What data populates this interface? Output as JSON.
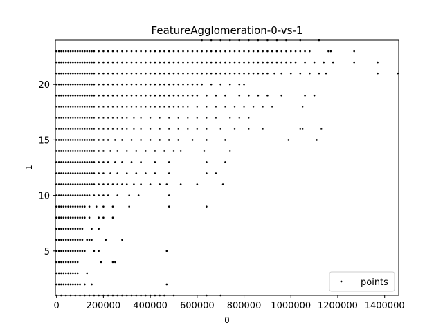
{
  "chart_data": {
    "type": "scatter",
    "title": "FeatureAgglomeration-0-vs-1",
    "xlabel": "0",
    "ylabel": "1",
    "xlim": [
      -5000,
      1460000
    ],
    "ylim": [
      1.0,
      24.0
    ],
    "xticks": [
      0,
      200000,
      400000,
      600000,
      800000,
      1000000,
      1200000,
      1400000
    ],
    "xtick_labels": [
      "0",
      "200000",
      "400000",
      "600000",
      "800000",
      "1000000",
      "1200000",
      "1400000"
    ],
    "yticks": [
      5,
      10,
      15,
      20
    ],
    "ytick_labels": [
      "5",
      "10",
      "15",
      "20"
    ],
    "grid": false,
    "legend": {
      "position": "lower-right",
      "entries": [
        "points"
      ]
    },
    "point_color": "#000000",
    "series": [
      {
        "name": "points",
        "rows": [
          {
            "y": 1,
            "x": [
              0,
              20000,
              40000,
              60000,
              80000,
              100000,
              120000,
              140000,
              160000,
              180000,
              200000,
              220000,
              240000,
              260000,
              280000,
              300000,
              320000,
              340000,
              360000,
              380000,
              400000,
              420000,
              440000,
              460000,
              500000,
              640000,
              700000
            ]
          },
          {
            "y": 2,
            "x": [
              0,
              10000,
              20000,
              30000,
              40000,
              50000,
              60000,
              70000,
              80000,
              90000,
              100000,
              120000,
              150000,
              470000
            ]
          },
          {
            "y": 3,
            "x": [
              0,
              10000,
              20000,
              30000,
              40000,
              50000,
              60000,
              70000,
              80000,
              90000,
              130000
            ]
          },
          {
            "y": 4,
            "x": [
              0,
              10000,
              20000,
              30000,
              40000,
              50000,
              60000,
              70000,
              80000,
              90000,
              190000,
              240000,
              250000
            ]
          },
          {
            "y": 5,
            "x": [
              0,
              10000,
              20000,
              30000,
              40000,
              50000,
              60000,
              70000,
              80000,
              90000,
              100000,
              110000,
              120000,
              160000,
              180000,
              470000
            ]
          },
          {
            "y": 6,
            "x": [
              0,
              10000,
              20000,
              30000,
              40000,
              50000,
              60000,
              70000,
              80000,
              90000,
              100000,
              110000,
              130000,
              140000,
              150000,
              210000,
              280000
            ]
          },
          {
            "y": 7,
            "x": [
              0,
              10000,
              20000,
              30000,
              40000,
              50000,
              60000,
              70000,
              80000,
              90000,
              100000,
              110000,
              150000,
              180000
            ]
          },
          {
            "y": 8,
            "x": [
              0,
              10000,
              20000,
              30000,
              40000,
              50000,
              60000,
              70000,
              80000,
              90000,
              100000,
              110000,
              120000,
              140000,
              180000,
              200000,
              240000
            ]
          },
          {
            "y": 9,
            "x": [
              0,
              10000,
              20000,
              30000,
              40000,
              50000,
              60000,
              70000,
              80000,
              90000,
              100000,
              110000,
              120000,
              140000,
              170000,
              200000,
              240000,
              310000,
              480000,
              640000
            ]
          },
          {
            "y": 10,
            "x": [
              0,
              10000,
              20000,
              30000,
              40000,
              50000,
              60000,
              70000,
              80000,
              90000,
              100000,
              110000,
              120000,
              130000,
              140000,
              160000,
              180000,
              200000,
              220000,
              260000,
              310000,
              350000,
              480000
            ]
          },
          {
            "y": 11,
            "x": [
              0,
              10000,
              20000,
              30000,
              40000,
              50000,
              60000,
              70000,
              80000,
              90000,
              100000,
              110000,
              120000,
              130000,
              140000,
              150000,
              160000,
              180000,
              200000,
              220000,
              240000,
              260000,
              280000,
              300000,
              330000,
              360000,
              400000,
              440000,
              470000,
              530000,
              600000,
              710000
            ]
          },
          {
            "y": 12,
            "x": [
              0,
              10000,
              20000,
              30000,
              40000,
              50000,
              60000,
              70000,
              80000,
              90000,
              100000,
              110000,
              120000,
              130000,
              140000,
              150000,
              160000,
              180000,
              200000,
              230000,
              260000,
              300000,
              340000,
              380000,
              420000,
              480000,
              640000,
              680000
            ]
          },
          {
            "y": 13,
            "x": [
              0,
              10000,
              20000,
              30000,
              40000,
              50000,
              60000,
              70000,
              80000,
              90000,
              100000,
              110000,
              120000,
              130000,
              140000,
              150000,
              160000,
              180000,
              200000,
              220000,
              250000,
              280000,
              320000,
              360000,
              420000,
              480000,
              640000,
              720000
            ]
          },
          {
            "y": 14,
            "x": [
              0,
              10000,
              20000,
              30000,
              40000,
              50000,
              60000,
              70000,
              80000,
              90000,
              100000,
              110000,
              120000,
              130000,
              140000,
              150000,
              160000,
              180000,
              200000,
              230000,
              260000,
              300000,
              340000,
              380000,
              420000,
              460000,
              500000,
              530000,
              630000,
              740000
            ]
          },
          {
            "y": 15,
            "x": [
              0,
              10000,
              20000,
              30000,
              40000,
              50000,
              60000,
              70000,
              80000,
              90000,
              100000,
              110000,
              120000,
              130000,
              140000,
              150000,
              160000,
              180000,
              200000,
              220000,
              250000,
              280000,
              320000,
              360000,
              400000,
              440000,
              480000,
              520000,
              580000,
              640000,
              720000,
              990000,
              1110000
            ]
          },
          {
            "y": 16,
            "x": [
              0,
              10000,
              20000,
              30000,
              40000,
              50000,
              60000,
              70000,
              80000,
              90000,
              100000,
              110000,
              120000,
              130000,
              140000,
              150000,
              160000,
              180000,
              200000,
              220000,
              240000,
              260000,
              280000,
              300000,
              330000,
              360000,
              400000,
              440000,
              480000,
              520000,
              560000,
              600000,
              640000,
              700000,
              760000,
              820000,
              880000,
              1040000,
              1050000,
              1130000
            ]
          },
          {
            "y": 17,
            "x": [
              0,
              10000,
              20000,
              30000,
              40000,
              50000,
              60000,
              70000,
              80000,
              90000,
              100000,
              110000,
              120000,
              130000,
              140000,
              150000,
              160000,
              180000,
              200000,
              220000,
              240000,
              260000,
              280000,
              300000,
              330000,
              360000,
              400000,
              440000,
              480000,
              520000,
              560000,
              600000,
              640000,
              680000,
              740000,
              780000,
              820000
            ]
          },
          {
            "y": 18,
            "x": [
              0,
              10000,
              20000,
              30000,
              40000,
              50000,
              60000,
              70000,
              80000,
              90000,
              100000,
              110000,
              120000,
              130000,
              140000,
              150000,
              160000,
              180000,
              200000,
              220000,
              240000,
              260000,
              280000,
              300000,
              320000,
              340000,
              360000,
              380000,
              400000,
              420000,
              440000,
              460000,
              480000,
              500000,
              520000,
              540000,
              560000,
              600000,
              640000,
              680000,
              720000,
              760000,
              800000,
              840000,
              880000,
              920000,
              1050000
            ]
          },
          {
            "y": 19,
            "x": [
              0,
              10000,
              20000,
              30000,
              40000,
              50000,
              60000,
              70000,
              80000,
              90000,
              100000,
              110000,
              120000,
              130000,
              140000,
              150000,
              160000,
              180000,
              200000,
              220000,
              240000,
              260000,
              280000,
              300000,
              320000,
              340000,
              360000,
              380000,
              400000,
              420000,
              440000,
              460000,
              480000,
              500000,
              520000,
              540000,
              560000,
              580000,
              600000,
              640000,
              680000,
              720000,
              780000,
              820000,
              860000,
              900000,
              960000,
              1060000,
              1100000
            ]
          },
          {
            "y": 20,
            "x": [
              0,
              10000,
              20000,
              30000,
              40000,
              50000,
              60000,
              70000,
              80000,
              90000,
              100000,
              110000,
              120000,
              130000,
              140000,
              150000,
              160000,
              180000,
              200000,
              220000,
              240000,
              260000,
              280000,
              300000,
              320000,
              340000,
              360000,
              380000,
              400000,
              420000,
              440000,
              460000,
              480000,
              500000,
              520000,
              540000,
              560000,
              580000,
              600000,
              620000,
              660000,
              700000,
              740000,
              780000,
              800000
            ]
          },
          {
            "y": 21,
            "x": [
              0,
              10000,
              20000,
              30000,
              40000,
              50000,
              60000,
              70000,
              80000,
              90000,
              100000,
              110000,
              120000,
              130000,
              140000,
              150000,
              160000,
              180000,
              200000,
              220000,
              240000,
              260000,
              280000,
              300000,
              320000,
              340000,
              360000,
              380000,
              400000,
              420000,
              440000,
              460000,
              480000,
              500000,
              520000,
              540000,
              560000,
              580000,
              600000,
              620000,
              640000,
              660000,
              680000,
              700000,
              720000,
              740000,
              760000,
              780000,
              800000,
              820000,
              840000,
              860000,
              880000,
              900000,
              930000,
              960000,
              1000000,
              1040000,
              1080000,
              1120000,
              1150000,
              1370000,
              1455000
            ]
          },
          {
            "y": 22,
            "x": [
              0,
              10000,
              20000,
              30000,
              40000,
              50000,
              60000,
              70000,
              80000,
              90000,
              100000,
              110000,
              120000,
              130000,
              140000,
              150000,
              160000,
              180000,
              200000,
              220000,
              240000,
              260000,
              280000,
              300000,
              320000,
              340000,
              360000,
              380000,
              400000,
              420000,
              440000,
              460000,
              480000,
              500000,
              520000,
              540000,
              560000,
              580000,
              600000,
              620000,
              640000,
              660000,
              680000,
              700000,
              720000,
              740000,
              760000,
              780000,
              800000,
              820000,
              840000,
              860000,
              880000,
              900000,
              920000,
              940000,
              960000,
              980000,
              1000000,
              1020000,
              1060000,
              1100000,
              1140000,
              1180000,
              1270000,
              1370000
            ]
          },
          {
            "y": 23,
            "x": [
              0,
              10000,
              20000,
              30000,
              40000,
              50000,
              60000,
              70000,
              80000,
              90000,
              100000,
              110000,
              120000,
              130000,
              140000,
              150000,
              160000,
              180000,
              200000,
              220000,
              240000,
              260000,
              280000,
              300000,
              320000,
              340000,
              360000,
              380000,
              400000,
              420000,
              440000,
              460000,
              480000,
              500000,
              520000,
              540000,
              560000,
              580000,
              600000,
              620000,
              640000,
              660000,
              680000,
              700000,
              720000,
              740000,
              760000,
              780000,
              800000,
              820000,
              840000,
              860000,
              880000,
              900000,
              920000,
              940000,
              960000,
              980000,
              1000000,
              1020000,
              1040000,
              1060000,
              1080000,
              1160000,
              1170000,
              1270000
            ]
          },
          {
            "y": 24,
            "x": [
              620000,
              660000,
              700000,
              740000,
              780000,
              820000,
              860000,
              900000,
              940000,
              980000,
              1040000,
              1120000
            ]
          }
        ]
      }
    ]
  }
}
